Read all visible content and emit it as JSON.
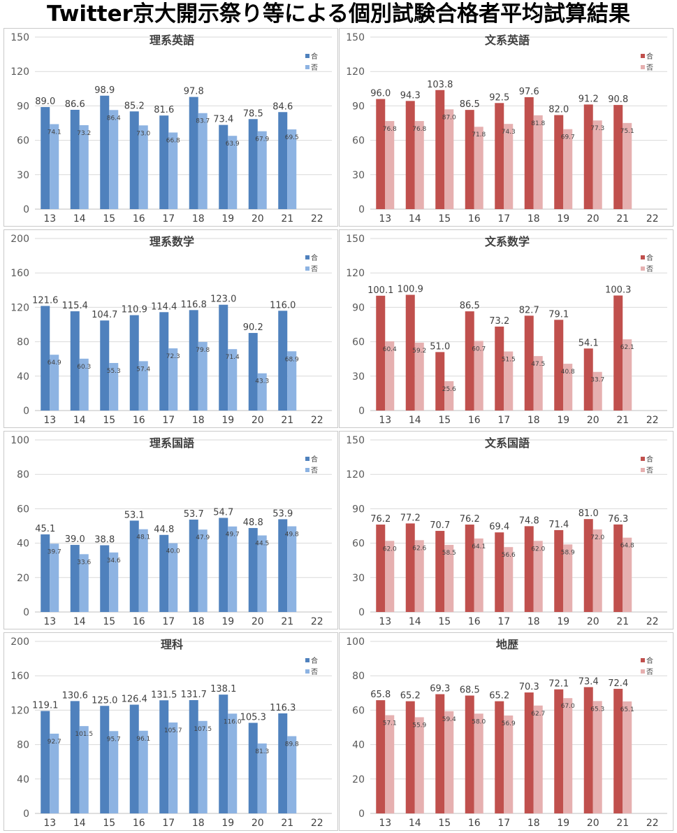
{
  "page_title": "Twitter京大開示祭り等による個別試験合格者平均試算結果",
  "colors": {
    "science_pass": "#4f81bd",
    "science_fail": "#8db3e2",
    "humanities_pass": "#c0504d",
    "humanities_fail": "#e6b0b0"
  },
  "legend": {
    "pass": "合",
    "fail": "否"
  },
  "chart_data": [
    {
      "type": "bar",
      "title": "理系英語",
      "palette": "science",
      "categories": [
        "13",
        "14",
        "15",
        "16",
        "17",
        "18",
        "19",
        "20",
        "21",
        "22"
      ],
      "ylim": [
        0,
        150
      ],
      "yticks": [
        "0",
        "30",
        "60",
        "90",
        "120",
        "150"
      ],
      "series": [
        {
          "name": "合",
          "values": [
            89.0,
            86.6,
            98.9,
            85.2,
            81.6,
            97.8,
            73.4,
            78.5,
            84.6,
            null
          ]
        },
        {
          "name": "否",
          "values": [
            74.1,
            73.2,
            86.4,
            73.0,
            66.8,
            83.7,
            63.9,
            67.9,
            69.5,
            null
          ]
        }
      ],
      "labels_pass": [
        "89.0",
        "86.6",
        "98.9",
        "85.2",
        "81.6",
        "97.8",
        "73.4",
        "78.5",
        "84.6",
        ""
      ],
      "labels_fail": [
        "74.1",
        "73.2",
        "86.4",
        "73.0",
        "66.8",
        "83.7",
        "63.9",
        "67.9",
        "69.5",
        ""
      ]
    },
    {
      "type": "bar",
      "title": "文系英語",
      "palette": "humanities",
      "categories": [
        "13",
        "14",
        "15",
        "16",
        "17",
        "18",
        "19",
        "20",
        "21",
        "22"
      ],
      "ylim": [
        0,
        150
      ],
      "yticks": [
        "0",
        "30",
        "60",
        "90",
        "120",
        "150"
      ],
      "series": [
        {
          "name": "合",
          "values": [
            96.0,
            94.3,
            103.8,
            86.5,
            92.5,
            97.6,
            82.0,
            91.2,
            90.8,
            null
          ]
        },
        {
          "name": "否",
          "values": [
            76.8,
            76.8,
            87.0,
            71.8,
            74.3,
            81.8,
            69.7,
            77.3,
            75.1,
            null
          ]
        }
      ],
      "labels_pass": [
        "96.0",
        "94.3",
        "103.8",
        "86.5",
        "92.5",
        "97.6",
        "82.0",
        "91.2",
        "90.8",
        ""
      ],
      "labels_fail": [
        "76.8",
        "76.8",
        "87.0",
        "71.8",
        "74.3",
        "81.8",
        "69.7",
        "77.3",
        "75.1",
        ""
      ]
    },
    {
      "type": "bar",
      "title": "理系数学",
      "palette": "science",
      "categories": [
        "13",
        "14",
        "15",
        "16",
        "17",
        "18",
        "19",
        "20",
        "21",
        "22"
      ],
      "ylim": [
        0,
        200
      ],
      "yticks": [
        "0",
        "40",
        "80",
        "120",
        "160",
        "200"
      ],
      "series": [
        {
          "name": "合",
          "values": [
            121.6,
            115.4,
            104.7,
            110.9,
            114.4,
            116.8,
            123.0,
            90.2,
            116.0,
            null
          ]
        },
        {
          "name": "否",
          "values": [
            64.9,
            60.3,
            55.3,
            57.4,
            72.3,
            79.8,
            71.4,
            43.3,
            68.9,
            null
          ]
        }
      ],
      "labels_pass": [
        "121.6",
        "115.4",
        "104.7",
        "110.9",
        "114.4",
        "116.8",
        "123.0",
        "90.2",
        "116.0",
        ""
      ],
      "labels_fail": [
        "64.9",
        "60.3",
        "55.3",
        "57.4",
        "72.3",
        "79.8",
        "71.4",
        "43.3",
        "68.9",
        ""
      ]
    },
    {
      "type": "bar",
      "title": "文系数学",
      "palette": "humanities",
      "categories": [
        "13",
        "14",
        "15",
        "16",
        "17",
        "18",
        "19",
        "20",
        "21",
        "22"
      ],
      "ylim": [
        0,
        150
      ],
      "yticks": [
        "0",
        "30",
        "60",
        "90",
        "120",
        "150"
      ],
      "series": [
        {
          "name": "合",
          "values": [
            100.1,
            100.9,
            51.0,
            86.5,
            73.2,
            82.7,
            79.1,
            54.1,
            100.3,
            null
          ]
        },
        {
          "name": "否",
          "values": [
            60.4,
            59.2,
            25.6,
            60.7,
            51.5,
            47.5,
            40.8,
            33.7,
            62.1,
            null
          ]
        }
      ],
      "labels_pass": [
        "100.1",
        "100.9",
        "51.0",
        "86.5",
        "73.2",
        "82.7",
        "79.1",
        "54.1",
        "100.3",
        ""
      ],
      "labels_fail": [
        "60.4",
        "59.2",
        "25.6",
        "60.7",
        "51.5",
        "47.5",
        "40.8",
        "33.7",
        "62.1",
        ""
      ]
    },
    {
      "type": "bar",
      "title": "理系国語",
      "palette": "science",
      "categories": [
        "13",
        "14",
        "15",
        "16",
        "17",
        "18",
        "19",
        "20",
        "21",
        "22"
      ],
      "ylim": [
        0,
        100
      ],
      "yticks": [
        "0",
        "20",
        "40",
        "60",
        "80",
        "100"
      ],
      "series": [
        {
          "name": "合",
          "values": [
            45.1,
            39.0,
            38.8,
            53.1,
            44.8,
            53.7,
            54.7,
            48.8,
            53.9,
            null
          ]
        },
        {
          "name": "否",
          "values": [
            39.7,
            33.6,
            34.6,
            48.1,
            40.0,
            47.9,
            49.7,
            44.5,
            49.8,
            null
          ]
        }
      ],
      "labels_pass": [
        "45.1",
        "39.0",
        "38.8",
        "53.1",
        "44.8",
        "53.7",
        "54.7",
        "48.8",
        "53.9",
        ""
      ],
      "labels_fail": [
        "39.7",
        "33.6",
        "34.6",
        "48.1",
        "40.0",
        "47.9",
        "49.7",
        "44.5",
        "49.8",
        ""
      ]
    },
    {
      "type": "bar",
      "title": "文系国語",
      "palette": "humanities",
      "categories": [
        "13",
        "14",
        "15",
        "16",
        "17",
        "18",
        "19",
        "20",
        "21",
        "22"
      ],
      "ylim": [
        0,
        150
      ],
      "yticks": [
        "0",
        "30",
        "60",
        "90",
        "120",
        "150"
      ],
      "series": [
        {
          "name": "合",
          "values": [
            76.2,
            77.2,
            70.7,
            76.2,
            69.4,
            74.8,
            71.4,
            81.0,
            76.3,
            null
          ]
        },
        {
          "name": "否",
          "values": [
            62.0,
            62.6,
            58.5,
            64.1,
            56.6,
            62.0,
            58.9,
            72.0,
            64.8,
            null
          ]
        }
      ],
      "labels_pass": [
        "76.2",
        "77.2",
        "70.7",
        "76.2",
        "69.4",
        "74.8",
        "71.4",
        "81.0",
        "76.3",
        ""
      ],
      "labels_fail": [
        "62.0",
        "62.6",
        "58.5",
        "64.1",
        "56.6",
        "62.0",
        "58.9",
        "72.0",
        "64.8",
        ""
      ]
    },
    {
      "type": "bar",
      "title": "理科",
      "palette": "science",
      "categories": [
        "13",
        "14",
        "15",
        "16",
        "17",
        "18",
        "19",
        "20",
        "21",
        "22"
      ],
      "ylim": [
        0,
        200
      ],
      "yticks": [
        "0",
        "40",
        "80",
        "120",
        "160",
        "200"
      ],
      "series": [
        {
          "name": "合",
          "values": [
            119.1,
            130.6,
            125.0,
            126.4,
            131.5,
            131.7,
            138.1,
            105.3,
            116.3,
            null
          ]
        },
        {
          "name": "否",
          "values": [
            92.7,
            101.5,
            95.7,
            96.1,
            105.7,
            107.5,
            116.0,
            81.3,
            89.8,
            null
          ]
        }
      ],
      "labels_pass": [
        "119.1",
        "130.6",
        "125.0",
        "126.4",
        "131.5",
        "131.7",
        "138.1",
        "105.3",
        "116.3",
        ""
      ],
      "labels_fail": [
        "92.7",
        "101.5",
        "95.7",
        "96.1",
        "105.7",
        "107.5",
        "116.0",
        "81.3",
        "89.8",
        ""
      ]
    },
    {
      "type": "bar",
      "title": "地歴",
      "palette": "humanities",
      "categories": [
        "13",
        "14",
        "15",
        "16",
        "17",
        "18",
        "19",
        "20",
        "21",
        "22"
      ],
      "ylim": [
        0,
        100
      ],
      "yticks": [
        "0",
        "20",
        "40",
        "60",
        "80",
        "100"
      ],
      "series": [
        {
          "name": "合",
          "values": [
            65.8,
            65.2,
            69.3,
            68.5,
            65.2,
            70.3,
            72.1,
            73.4,
            72.4,
            null
          ]
        },
        {
          "name": "否",
          "values": [
            57.1,
            55.9,
            59.4,
            58.0,
            56.9,
            62.7,
            67.0,
            65.3,
            65.1,
            null
          ]
        }
      ],
      "labels_pass": [
        "65.8",
        "65.2",
        "69.3",
        "68.5",
        "65.2",
        "70.3",
        "72.1",
        "73.4",
        "72.4",
        ""
      ],
      "labels_fail": [
        "57.1",
        "55.9",
        "59.4",
        "58.0",
        "56.9",
        "62.7",
        "67.0",
        "65.3",
        "65.1",
        ""
      ]
    }
  ]
}
